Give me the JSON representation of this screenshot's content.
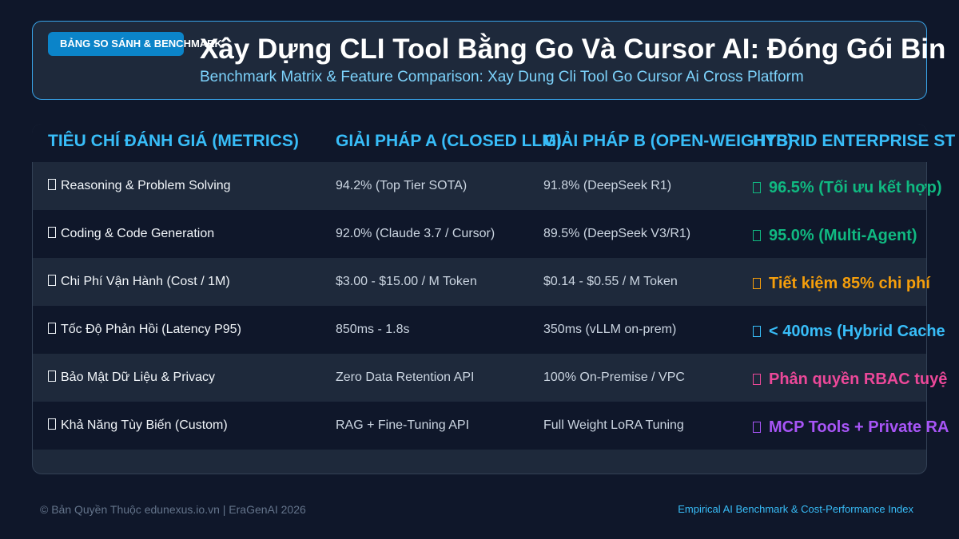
{
  "header": {
    "badge": "BẢNG SO SÁNH & BENCHMARK",
    "title": "Xây Dựng CLI Tool Bằng Go Và Cursor AI: Đóng Gói Bin",
    "subtitle": "Benchmark Matrix & Feature Comparison: Xay Dung Cli Tool Go Cursor Ai Cross Platform"
  },
  "table": {
    "columns": [
      "TIÊU CHÍ ĐÁNH GIÁ (METRICS)",
      "GIẢI PHÁP A (CLOSED LLM)",
      "GIẢI PHÁP B (OPEN-WEIGHTS)",
      "HYBRID ENTERPRISE ST"
    ],
    "rows": [
      [
        "Reasoning & Problem Solving",
        "94.2% (Top Tier SOTA)",
        "91.8% (DeepSeek R1)",
        "96.5% (Tối ưu kết hợp)"
      ],
      [
        "Coding & Code Generation",
        "92.0% (Claude 3.7 / Cursor)",
        "89.5% (DeepSeek V3/R1)",
        "95.0% (Multi-Agent)"
      ],
      [
        "Chi Phí Vận Hành (Cost / 1M)",
        "$3.00 - $15.00 / M Token",
        "$0.14 - $0.55 / M Token",
        "Tiết kiệm 85% chi phí"
      ],
      [
        "Tốc Độ Phản Hồi (Latency P95)",
        "850ms - 1.8s",
        "350ms (vLLM on-prem)",
        "< 400ms (Hybrid Cache"
      ],
      [
        "Bảo Mật Dữ Liệu & Privacy",
        "Zero Data Retention API",
        "100% On-Premise / VPC",
        "Phân quyền RBAC tuyệ"
      ],
      [
        "Khả Năng Tùy Biến (Custom)",
        "RAG + Fine-Tuning API",
        "Full Weight LoRA Tuning",
        "MCP Tools + Private RA"
      ]
    ]
  },
  "footer": {
    "copyright": "© Bản Quyền Thuộc edunexus.io.vn | EraGenAI 2026",
    "tagline": "Empirical AI Benchmark & Cost-Performance Index"
  }
}
